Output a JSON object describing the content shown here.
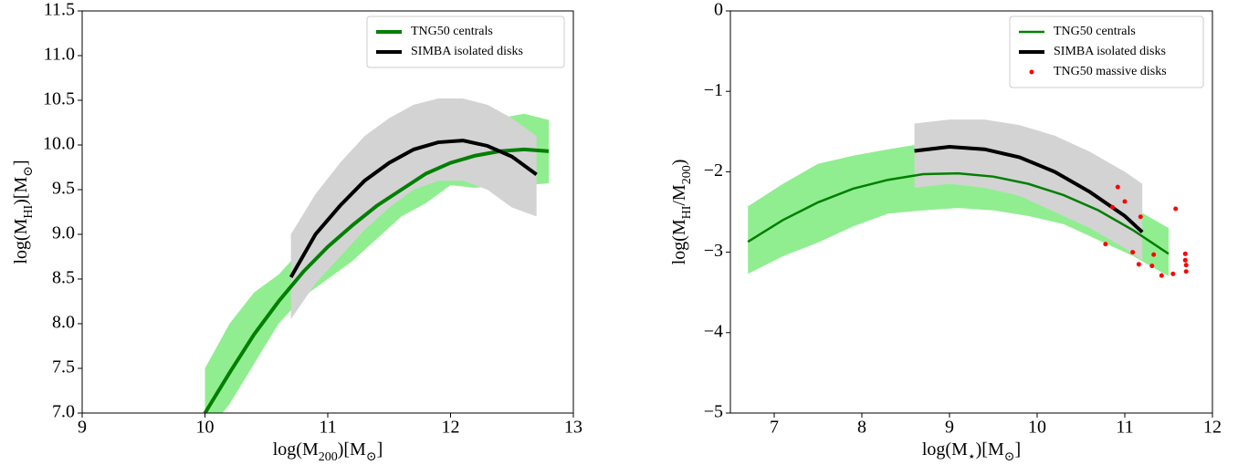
{
  "chart_data": [
    {
      "type": "line",
      "xlabel": [
        "log(M",
        "200",
        ")[M",
        "⊙",
        "]"
      ],
      "ylabel": [
        "log(M",
        "HI",
        ")[M",
        "⊙",
        "]"
      ],
      "xlim": [
        9,
        13
      ],
      "ylim": [
        7,
        11.5
      ],
      "xticks": [
        9,
        10,
        11,
        12,
        13
      ],
      "yticks": [
        {
          "value": 7,
          "label": "7.0"
        },
        7.5,
        {
          "value": 8,
          "label": "8.0"
        },
        8.5,
        {
          "value": 9,
          "label": "9.0"
        },
        9.5,
        {
          "value": 10,
          "label": "10.0"
        },
        10.5,
        {
          "value": 11,
          "label": "11.0"
        },
        11.5
      ],
      "legend": "upper right",
      "series": [
        {
          "name": "TNG50 centrals",
          "color": "#007f00",
          "linewidth": 4,
          "band_color": "#90ee90",
          "x": [
            10.0,
            10.2,
            10.4,
            10.6,
            10.8,
            11.0,
            11.2,
            11.4,
            11.6,
            11.8,
            12.0,
            12.2,
            12.4,
            12.6,
            12.8
          ],
          "values": [
            7.0,
            7.45,
            7.88,
            8.25,
            8.58,
            8.86,
            9.1,
            9.32,
            9.5,
            9.68,
            9.8,
            9.88,
            9.93,
            9.95,
            9.93
          ],
          "upper": [
            7.5,
            8.0,
            8.35,
            8.55,
            8.85,
            9.05,
            9.3,
            9.5,
            9.65,
            9.8,
            9.95,
            10.1,
            10.3,
            10.35,
            10.28
          ],
          "lower": [
            6.75,
            7.1,
            7.55,
            8.0,
            8.3,
            8.5,
            8.7,
            8.95,
            9.2,
            9.35,
            9.55,
            9.52,
            9.55,
            9.55,
            9.57
          ]
        },
        {
          "name": "SIMBA isolated disks",
          "color": "#000000",
          "linewidth": 4,
          "band_color": "#d3d3d3",
          "x": [
            10.7,
            10.9,
            11.1,
            11.3,
            11.5,
            11.7,
            11.9,
            12.1,
            12.3,
            12.5,
            12.7
          ],
          "values": [
            8.52,
            9.0,
            9.32,
            9.6,
            9.8,
            9.95,
            10.03,
            10.05,
            9.99,
            9.87,
            9.67
          ],
          "upper": [
            9.0,
            9.45,
            9.8,
            10.1,
            10.3,
            10.45,
            10.52,
            10.52,
            10.45,
            10.3,
            10.1
          ],
          "lower": [
            8.05,
            8.45,
            8.75,
            9.05,
            9.3,
            9.5,
            9.6,
            9.6,
            9.5,
            9.3,
            9.2
          ]
        }
      ]
    },
    {
      "type": "line",
      "xlabel": [
        "log(M",
        "⋆",
        ")[M",
        "⊙",
        "]"
      ],
      "ylabel": [
        "log(M",
        "HI",
        "/M",
        "200",
        ")"
      ],
      "xlim": [
        6.5,
        12
      ],
      "ylim": [
        -5,
        0
      ],
      "xticks": [
        7,
        8,
        9,
        10,
        11,
        12
      ],
      "yticks": [
        {
          "value": -5,
          "label": "−5"
        },
        {
          "value": -4,
          "label": "−4"
        },
        {
          "value": -3,
          "label": "−3"
        },
        {
          "value": -2,
          "label": "−2"
        },
        {
          "value": -1,
          "label": "−1"
        },
        0
      ],
      "legend": "upper right",
      "series": [
        {
          "name": "TNG50 centrals",
          "color": "#007f00",
          "linewidth": 2.5,
          "band_color": "#90ee90",
          "x": [
            6.7,
            7.1,
            7.5,
            7.9,
            8.3,
            8.7,
            9.1,
            9.5,
            9.9,
            10.3,
            10.7,
            11.1,
            11.5
          ],
          "values": [
            -2.87,
            -2.6,
            -2.38,
            -2.21,
            -2.1,
            -2.03,
            -2.02,
            -2.06,
            -2.15,
            -2.29,
            -2.48,
            -2.73,
            -3.02
          ],
          "upper": [
            -2.43,
            -2.15,
            -1.9,
            -1.8,
            -1.72,
            -1.65,
            -1.65,
            -1.65,
            -1.75,
            -1.95,
            -2.1,
            -2.45,
            -2.7
          ],
          "lower": [
            -3.27,
            -3.05,
            -2.88,
            -2.68,
            -2.52,
            -2.48,
            -2.45,
            -2.48,
            -2.55,
            -2.65,
            -2.85,
            -3.05,
            -3.3
          ]
        },
        {
          "name": "SIMBA isolated disks",
          "color": "#000000",
          "linewidth": 4,
          "band_color": "#d3d3d3",
          "x": [
            8.6,
            9.0,
            9.4,
            9.8,
            10.2,
            10.6,
            11.0,
            11.2
          ],
          "values": [
            -1.74,
            -1.69,
            -1.72,
            -1.82,
            -2.0,
            -2.25,
            -2.55,
            -2.75
          ],
          "upper": [
            -1.4,
            -1.35,
            -1.35,
            -1.42,
            -1.55,
            -1.75,
            -2.0,
            -2.15
          ],
          "lower": [
            -2.2,
            -2.15,
            -2.2,
            -2.3,
            -2.5,
            -2.7,
            -2.95,
            -3.1
          ]
        },
        {
          "name": "TNG50 massive disks",
          "type": "scatter",
          "color": "#ff0000",
          "x": [
            10.78,
            10.86,
            10.92,
            11.0,
            11.09,
            11.16,
            11.18,
            11.31,
            11.33,
            11.42,
            11.55,
            11.58,
            11.69,
            11.69,
            11.7,
            11.7
          ],
          "values": [
            -2.9,
            -2.44,
            -2.19,
            -2.37,
            -3.0,
            -3.15,
            -2.56,
            -3.17,
            -3.03,
            -3.29,
            -3.27,
            -2.46,
            -3.02,
            -3.1,
            -3.16,
            -3.24
          ]
        }
      ]
    }
  ]
}
